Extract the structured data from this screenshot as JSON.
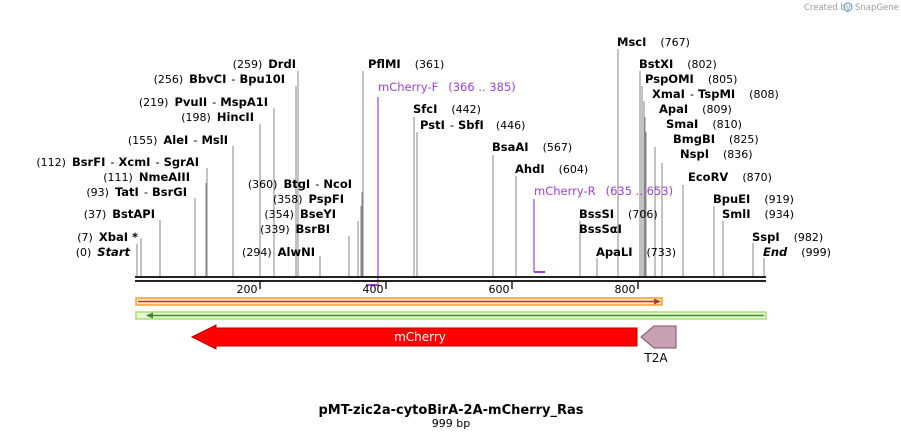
{
  "credit": {
    "prefix": "Created by",
    "brand": "SnapGene"
  },
  "title": "pMT-zic2a-cytoBirA-2A-mCherry_Ras",
  "subtitle": "999 bp",
  "ruler": {
    "ticks": [
      "200",
      "400",
      "600",
      "800"
    ]
  },
  "sites": [
    {
      "pos": "(0)",
      "name": "Start",
      "italic": true
    },
    {
      "pos": "(7)",
      "name": "XbaI *"
    },
    {
      "pos": "(37)",
      "name": "BstAPI"
    },
    {
      "pos": "(93)",
      "name": "TatI",
      "sep": "-",
      "name2": "BsrGI"
    },
    {
      "pos": "(111)",
      "name": "NmeAIII"
    },
    {
      "pos": "(112)",
      "name": "BsrFI",
      "sep": "-",
      "name2": "XcmI",
      "sep2": "-",
      "name3": "SgrAI"
    },
    {
      "pos": "(155)",
      "name": "AleI",
      "sep": "-",
      "name2": "MslI"
    },
    {
      "pos": "(198)",
      "name": "HincII"
    },
    {
      "pos": "(219)",
      "name": "PvuII",
      "sep": "-",
      "name2": "MspA1I"
    },
    {
      "pos": "(256)",
      "name": "BbvCI",
      "sep": "-",
      "name2": "Bpu10I"
    },
    {
      "pos": "(259)",
      "name": "DrdI"
    },
    {
      "pos": "(294)",
      "name": "AlwNI"
    },
    {
      "pos": "(339)",
      "name": "BsrBI"
    },
    {
      "pos": "(354)",
      "name": "BseYI"
    },
    {
      "pos": "(358)",
      "name": "PspFI"
    },
    {
      "pos": "(360)",
      "name": "BtgI",
      "sep": "-",
      "name2": "NcoI"
    },
    {
      "name": "PflMI",
      "pos": "(361)"
    },
    {
      "name": "SfcI",
      "pos": "(442)"
    },
    {
      "name": "PstI",
      "sep": "-",
      "name2": "SbfI",
      "pos": "(446)"
    },
    {
      "name": "BsaAI",
      "pos": "(567)"
    },
    {
      "name": "AhdI",
      "pos": "(604)"
    },
    {
      "name": "BssSI",
      "pos": "(706)"
    },
    {
      "name": "BssSαI"
    },
    {
      "name": "ApaLI",
      "pos": "(733)"
    },
    {
      "name": "MscI",
      "pos": "(767)"
    },
    {
      "name": "BstXI",
      "pos": "(802)"
    },
    {
      "name": "PspOMI",
      "pos": "(805)"
    },
    {
      "name": "XmaI",
      "sep": "-",
      "name2": "TspMI",
      "pos": "(808)"
    },
    {
      "name": "ApaI",
      "pos": "(809)"
    },
    {
      "name": "SmaI",
      "pos": "(810)"
    },
    {
      "name": "BmgBI",
      "pos": "(825)"
    },
    {
      "name": "NspI",
      "pos": "(836)"
    },
    {
      "name": "EcoRV",
      "pos": "(870)"
    },
    {
      "name": "BpuEI",
      "pos": "(919)"
    },
    {
      "name": "SmlI",
      "pos": "(934)"
    },
    {
      "name": "SspI",
      "pos": "(982)"
    },
    {
      "name": "End",
      "pos": "(999)",
      "italic": true
    }
  ],
  "primers": [
    {
      "name": "mCherry-F",
      "range": "(366 .. 385)"
    },
    {
      "name": "mCherry-R",
      "range": "(635 .. 653)"
    }
  ],
  "features": [
    {
      "name": "mCherry",
      "color": "#ff0000"
    },
    {
      "name": "T2A",
      "color": "#c8a0b4"
    }
  ],
  "colors": {
    "orf_outer": "#f0a030",
    "orf_inner": "#b43c28",
    "orf2_outer": "#a8e070",
    "orf2_inner": "#3c8c28",
    "primer": "#a040d8"
  }
}
